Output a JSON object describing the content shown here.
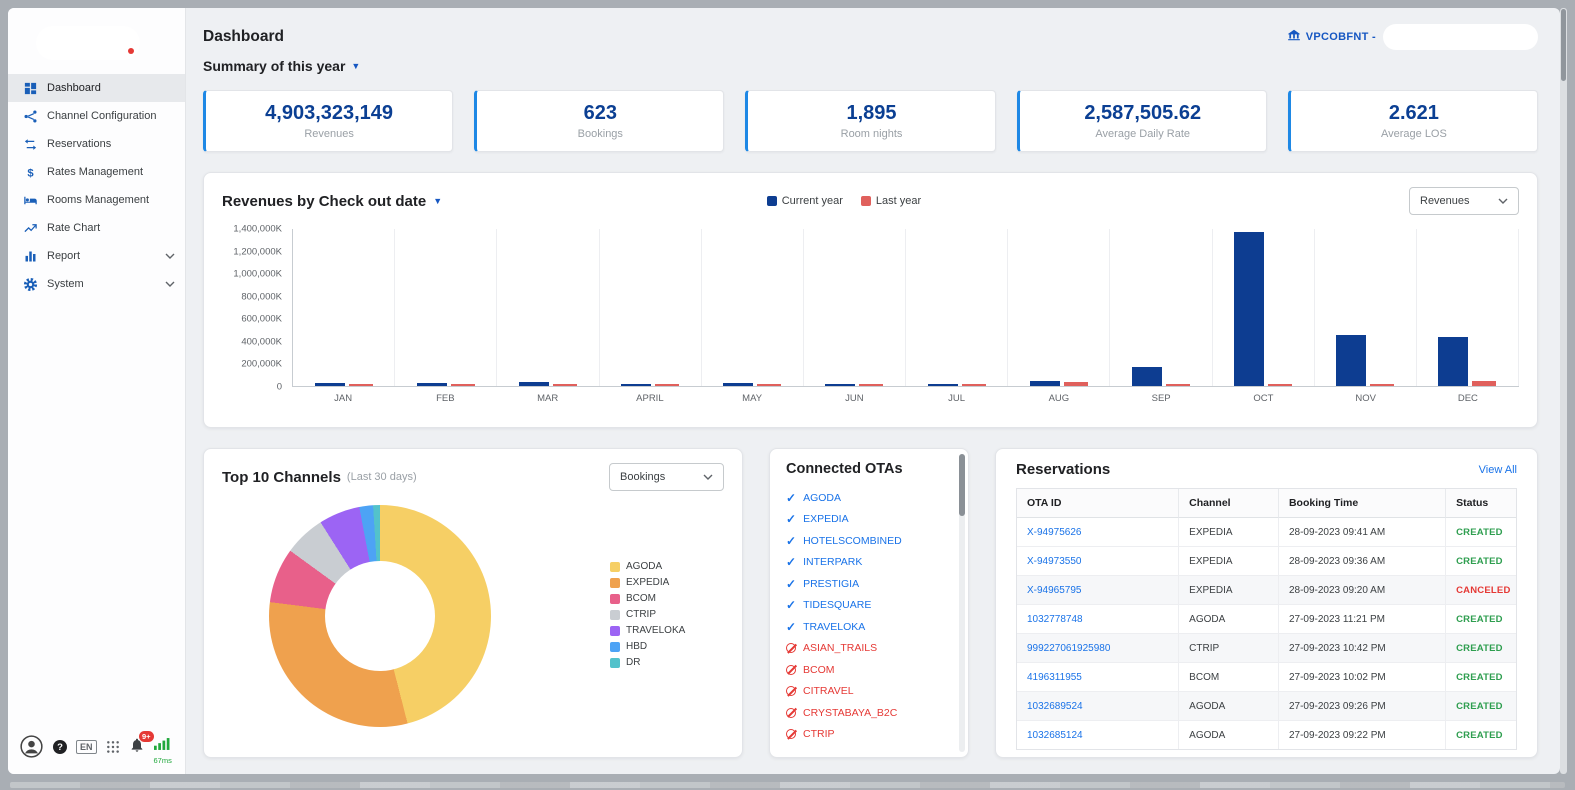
{
  "window": {
    "account_label": "VPCOBFNT -"
  },
  "icons": {
    "caret_down": "▼",
    "connected_check": "✓",
    "disconnected_blocked": "circle-slash"
  },
  "sidebar": {
    "items": [
      {
        "label": "Dashboard",
        "icon": "dashboard-icon",
        "active": true,
        "expandable": false
      },
      {
        "label": "Channel Configuration",
        "icon": "channel-configuration-icon",
        "active": false,
        "expandable": false
      },
      {
        "label": "Reservations",
        "icon": "reservations-icon",
        "active": false,
        "expandable": false
      },
      {
        "label": "Rates Management",
        "icon": "rates-management-icon",
        "active": false,
        "expandable": false
      },
      {
        "label": "Rooms Management",
        "icon": "rooms-management-icon",
        "active": false,
        "expandable": false
      },
      {
        "label": "Rate Chart",
        "icon": "rate-chart-icon",
        "active": false,
        "expandable": false
      },
      {
        "label": "Report",
        "icon": "report-icon",
        "active": false,
        "expandable": true
      },
      {
        "label": "System",
        "icon": "system-icon",
        "active": false,
        "expandable": true
      }
    ],
    "footer": {
      "language": "EN",
      "notification_badge": "9+",
      "latency": "67ms"
    }
  },
  "header": {
    "page_title": "Dashboard",
    "summary_filter": "Summary of this year"
  },
  "stat_cards": [
    {
      "value": "4,903,323,149",
      "label": "Revenues"
    },
    {
      "value": "623",
      "label": "Bookings"
    },
    {
      "value": "1,895",
      "label": "Room nights"
    },
    {
      "value": "2,587,505.62",
      "label": "Average Daily Rate"
    },
    {
      "value": "2.621",
      "label": "Average LOS"
    }
  ],
  "revenue_panel": {
    "title": "Revenues by Check out date",
    "metric_select": "Revenues"
  },
  "chart_data": [
    {
      "type": "bar",
      "title": "Revenues by Check out date",
      "categories": [
        "JAN",
        "FEB",
        "MAR",
        "APRIL",
        "MAY",
        "JUN",
        "JUL",
        "AUG",
        "SEP",
        "OCT",
        "NOV",
        "DEC"
      ],
      "series": [
        {
          "name": "Current year",
          "color": "#0d3d91",
          "values": [
            25000,
            30000,
            35000,
            6000,
            28000,
            22000,
            10000,
            43000,
            174000,
            1370000,
            452000,
            437000
          ]
        },
        {
          "name": "Last year",
          "color": "#e0605c",
          "values": [
            10000,
            10000,
            9000,
            7000,
            9000,
            13000,
            7000,
            35000,
            12000,
            13000,
            17000,
            43000
          ]
        }
      ],
      "unit": "K",
      "ylim": [
        0,
        1400000
      ],
      "y_ticks": [
        "1,400,000K",
        "1,200,000K",
        "1,000,000K",
        "800,000K",
        "600,000K",
        "400,000K",
        "200,000K",
        "0"
      ],
      "legend_position": "top-center",
      "grid": "vertical"
    },
    {
      "type": "pie",
      "donut": true,
      "title": "Top 10 Channels (Last 30 days) - Bookings share %",
      "slices": [
        {
          "label": "AGODA",
          "value": 46,
          "color": "#f6cf65"
        },
        {
          "label": "EXPEDIA",
          "value": 31,
          "color": "#efa14e"
        },
        {
          "label": "BCOM",
          "value": 8,
          "color": "#e8608a"
        },
        {
          "label": "CTRIP",
          "value": 6,
          "color": "#c9cdd2"
        },
        {
          "label": "TRAVELOKA",
          "value": 6,
          "color": "#9c64f4"
        },
        {
          "label": "HBD",
          "value": 2,
          "color": "#4da3f5"
        },
        {
          "label": "DR",
          "value": 1,
          "color": "#53c2cb"
        }
      ],
      "legend_position": "right"
    }
  ],
  "top_channels_panel": {
    "title": "Top 10 Channels",
    "subtitle": "(Last 30 days)",
    "metric_select": "Bookings"
  },
  "connected_otas": {
    "title": "Connected OTAs",
    "items": [
      {
        "name": "AGODA",
        "status": "connected"
      },
      {
        "name": "EXPEDIA",
        "status": "connected"
      },
      {
        "name": "HOTELSCOMBINED",
        "status": "connected"
      },
      {
        "name": "INTERPARK",
        "status": "connected"
      },
      {
        "name": "PRESTIGIA",
        "status": "connected"
      },
      {
        "name": "TIDESQUARE",
        "status": "connected"
      },
      {
        "name": "TRAVELOKA",
        "status": "connected"
      },
      {
        "name": "ASIAN_TRAILS",
        "status": "disconnected"
      },
      {
        "name": "BCOM",
        "status": "disconnected"
      },
      {
        "name": "CITRAVEL",
        "status": "disconnected"
      },
      {
        "name": "CRYSTABAYA_B2C",
        "status": "disconnected"
      },
      {
        "name": "CTRIP",
        "status": "disconnected"
      }
    ]
  },
  "reservations": {
    "title": "Reservations",
    "view_all": "View All",
    "columns": [
      "OTA ID",
      "Channel",
      "Booking Time",
      "Status"
    ],
    "rows": [
      {
        "ota_id": "X-94975626",
        "channel": "EXPEDIA",
        "booking_time": "28-09-2023 09:41 AM",
        "status": "CREATED"
      },
      {
        "ota_id": "X-94973550",
        "channel": "EXPEDIA",
        "booking_time": "28-09-2023 09:36 AM",
        "status": "CREATED"
      },
      {
        "ota_id": "X-94965795",
        "channel": "EXPEDIA",
        "booking_time": "28-09-2023 09:20 AM",
        "status": "CANCELED"
      },
      {
        "ota_id": "1032778748",
        "channel": "AGODA",
        "booking_time": "27-09-2023 11:21 PM",
        "status": "CREATED"
      },
      {
        "ota_id": "999227061925980",
        "channel": "CTRIP",
        "booking_time": "27-09-2023 10:42 PM",
        "status": "CREATED"
      },
      {
        "ota_id": "4196311955",
        "channel": "BCOM",
        "booking_time": "27-09-2023 10:02 PM",
        "status": "CREATED"
      },
      {
        "ota_id": "1032689524",
        "channel": "AGODA",
        "booking_time": "27-09-2023 09:26 PM",
        "status": "CREATED"
      },
      {
        "ota_id": "1032685124",
        "channel": "AGODA",
        "booking_time": "27-09-2023 09:22 PM",
        "status": "CREATED"
      }
    ]
  },
  "colors": {
    "primary_blue": "#0b3f93",
    "accent_blue": "#1a73e8",
    "current_year_bar": "#0d3d91",
    "last_year_bar": "#e0605c",
    "status_created": "#2e9e4f",
    "status_canceled": "#e53935"
  }
}
